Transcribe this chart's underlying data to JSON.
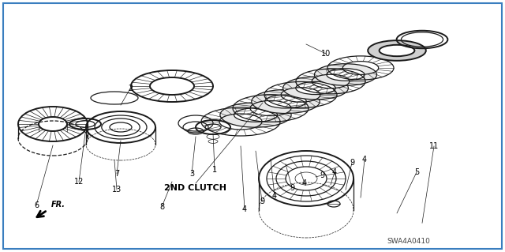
{
  "background_color": "#ffffff",
  "label_2nd_clutch": "2ND CLUTCH",
  "label_fr": "FR.",
  "label_swa": "SWA4A0410",
  "fig_width": 6.4,
  "fig_height": 3.19,
  "dpi": 100,
  "border_color": "#3a7ebf",
  "line_color": "#1a1a1a",
  "lw_main": 0.9,
  "lw_thin": 0.5,
  "lw_thick": 1.4
}
